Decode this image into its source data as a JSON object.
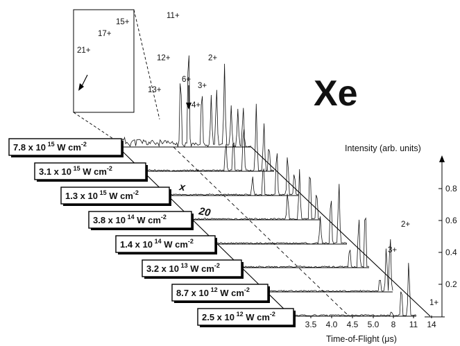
{
  "chart_data": {
    "type": "line",
    "title": "Xe",
    "xlabel": "Time-of-Flight (μs)",
    "ylabel": "Intensity (arb. units)",
    "x_ticks": [
      "3.5",
      "4.0",
      "4.5",
      "5.0",
      "8",
      "11",
      "14"
    ],
    "y_ticks": [
      "0.2",
      "0.4",
      "0.6",
      "0.8"
    ],
    "series": [
      {
        "name": "7.8 x 10^15 W cm^-2",
        "base": "7.8 x 10",
        "exponent": "15",
        "unit": "W cm",
        "unit_exp": "-2"
      },
      {
        "name": "3.1 x 10^15 W cm^-2",
        "base": "3.1 x 10",
        "exponent": "15",
        "unit": "W cm",
        "unit_exp": "-2"
      },
      {
        "name": "1.3 x 10^15 W cm^-2",
        "base": "1.3 x 10",
        "exponent": "15",
        "unit": "W cm",
        "unit_exp": "-2"
      },
      {
        "name": "3.8 x 10^14 W cm^-2",
        "base": "3.8 x 10",
        "exponent": "14",
        "unit": "W cm",
        "unit_exp": "-2"
      },
      {
        "name": "1.4 x 10^14 W cm^-2",
        "base": "1.4 x 10",
        "exponent": "14",
        "unit": "W cm",
        "unit_exp": "-2"
      },
      {
        "name": "3.2 x 10^13 W cm^-2",
        "base": "3.2 x 10",
        "exponent": "13",
        "unit": "W cm",
        "unit_exp": "-2"
      },
      {
        "name": "8.7 x 10^12 W cm^-2",
        "base": "8.7 x 10",
        "exponent": "12",
        "unit": "W cm",
        "unit_exp": "-2"
      },
      {
        "name": "2.5 x 10^12 W cm^-2",
        "base": "2.5 x 10",
        "exponent": "12",
        "unit": "W cm",
        "unit_exp": "-2"
      }
    ],
    "peak_labels_top": [
      "11+",
      "12+",
      "13+",
      "6+",
      "3+",
      "4+",
      "2+"
    ],
    "peak_labels_bottom": [
      "2+",
      "3+",
      "1+"
    ],
    "inset_labels": [
      "21+",
      "17+",
      "15+"
    ],
    "markers": [
      "x",
      "20"
    ]
  }
}
